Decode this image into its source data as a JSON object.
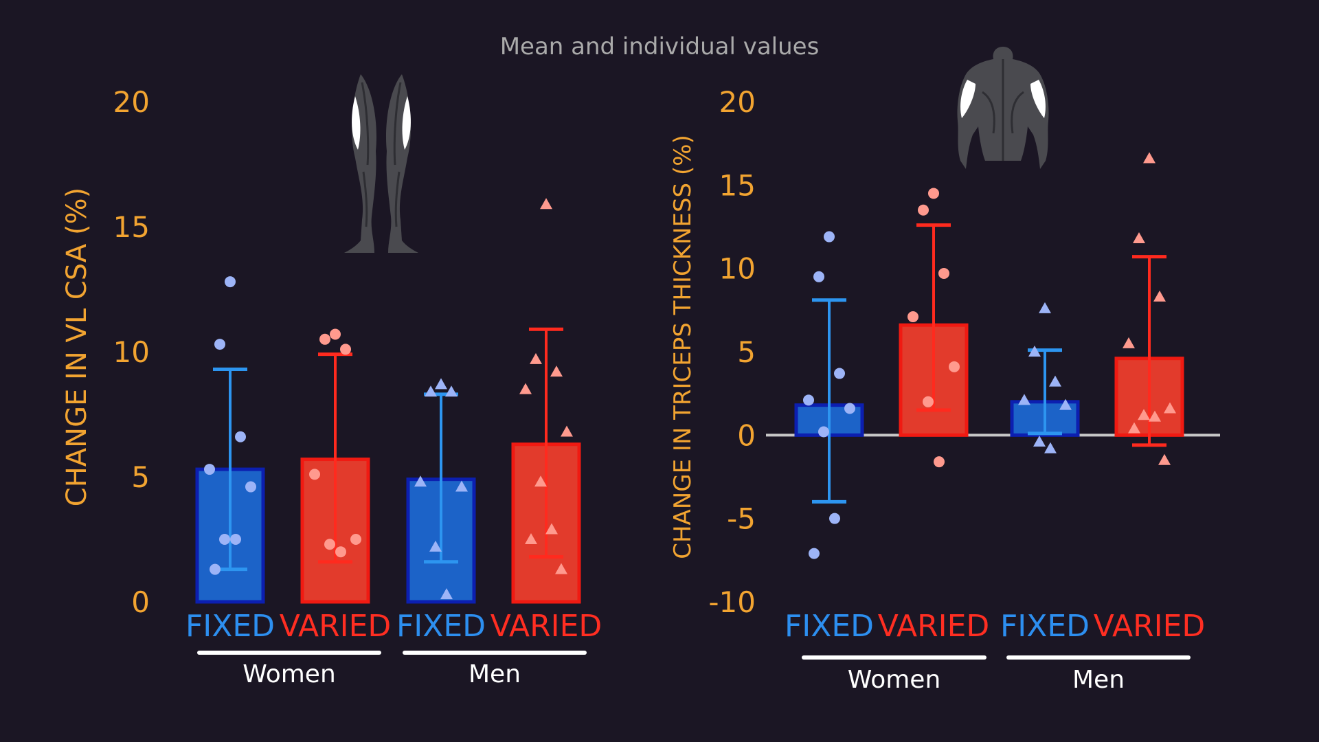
{
  "page": {
    "title": "Mean and individual values"
  },
  "colors": {
    "background": "#1b1624",
    "fixed_bar": "#1c63c8",
    "fixed_border": "#0c1fb0",
    "fixed_error": "#2d95f0",
    "fixed_label": "#2d8ff0",
    "fixed_points": "#9db4f7",
    "varied_bar": "#e23b2c",
    "varied_border": "#f01a12",
    "varied_error": "#ff2a1e",
    "varied_label": "#ff2e22",
    "varied_points": "#ff9a8e",
    "axis_top": "#f0281e",
    "axis_bottom": "#f2a22c",
    "tick_label": "#f2a431",
    "title": "#aaaaaa",
    "group_text": "#ffffff",
    "zero_line": "#c8c8c8"
  },
  "chart_data": [
    {
      "type": "bar",
      "icon": "legs-icon",
      "ylabel": "CHANGE IN  VL CSA (%)",
      "ylim": [
        0,
        20
      ],
      "yticks": [
        "0",
        "5",
        "10",
        "15",
        "20"
      ],
      "categories": [
        "FIXED",
        "VARIED",
        "FIXED",
        "VARIED"
      ],
      "groups": [
        {
          "label": "Women",
          "bars": [
            0,
            1
          ]
        },
        {
          "label": "Men",
          "bars": [
            2,
            3
          ]
        }
      ],
      "series": [
        {
          "group": "Women",
          "condition": "FIXED",
          "mean": 5.3,
          "err_low": 1.3,
          "err_high": 9.3,
          "marker": "circle",
          "points": [
            12.8,
            10.3,
            6.6,
            5.3,
            4.6,
            2.5,
            2.5,
            1.3
          ]
        },
        {
          "group": "Women",
          "condition": "VARIED",
          "mean": 5.7,
          "err_low": 1.6,
          "err_high": 9.9,
          "marker": "circle",
          "points": [
            10.7,
            10.5,
            10.1,
            5.1,
            2.5,
            2.3,
            2.0
          ]
        },
        {
          "group": "Men",
          "condition": "FIXED",
          "mean": 4.9,
          "err_low": 1.6,
          "err_high": 8.3,
          "marker": "triangle",
          "points": [
            8.7,
            8.4,
            8.4,
            4.8,
            4.6,
            2.2,
            0.3
          ]
        },
        {
          "group": "Men",
          "condition": "VARIED",
          "mean": 6.3,
          "err_low": 1.8,
          "err_high": 10.9,
          "marker": "triangle",
          "points": [
            15.9,
            9.7,
            9.2,
            8.5,
            6.8,
            4.8,
            2.9,
            2.5,
            1.3
          ]
        }
      ]
    },
    {
      "type": "bar",
      "icon": "torso-icon",
      "ylabel": "CHANGE IN TRICEPS THICKNESS (%)",
      "ylim": [
        -10,
        20
      ],
      "yticks": [
        "-10",
        "-5",
        "0",
        "5",
        "10",
        "15",
        "20"
      ],
      "categories": [
        "FIXED",
        "VARIED",
        "FIXED",
        "VARIED"
      ],
      "groups": [
        {
          "label": "Women",
          "bars": [
            0,
            1
          ]
        },
        {
          "label": "Men",
          "bars": [
            2,
            3
          ]
        }
      ],
      "series": [
        {
          "group": "Women",
          "condition": "FIXED",
          "mean": 1.8,
          "err_low": -4.0,
          "err_high": 8.1,
          "marker": "circle",
          "points": [
            11.9,
            9.5,
            3.7,
            2.1,
            1.6,
            0.2,
            -5.0,
            -7.1
          ]
        },
        {
          "group": "Women",
          "condition": "VARIED",
          "mean": 6.6,
          "err_low": 1.5,
          "err_high": 12.6,
          "marker": "circle",
          "points": [
            14.5,
            13.5,
            9.7,
            7.1,
            4.1,
            2.0,
            -1.6
          ]
        },
        {
          "group": "Men",
          "condition": "FIXED",
          "mean": 2.0,
          "err_low": 0.1,
          "err_high": 5.1,
          "marker": "triangle",
          "points": [
            7.6,
            5.0,
            3.2,
            2.1,
            1.8,
            -0.4,
            -0.8
          ]
        },
        {
          "group": "Men",
          "condition": "VARIED",
          "mean": 4.6,
          "err_low": -0.6,
          "err_high": 10.7,
          "marker": "triangle",
          "points": [
            16.6,
            11.8,
            8.3,
            5.5,
            1.6,
            1.2,
            1.1,
            0.4,
            -1.5
          ]
        }
      ]
    }
  ]
}
